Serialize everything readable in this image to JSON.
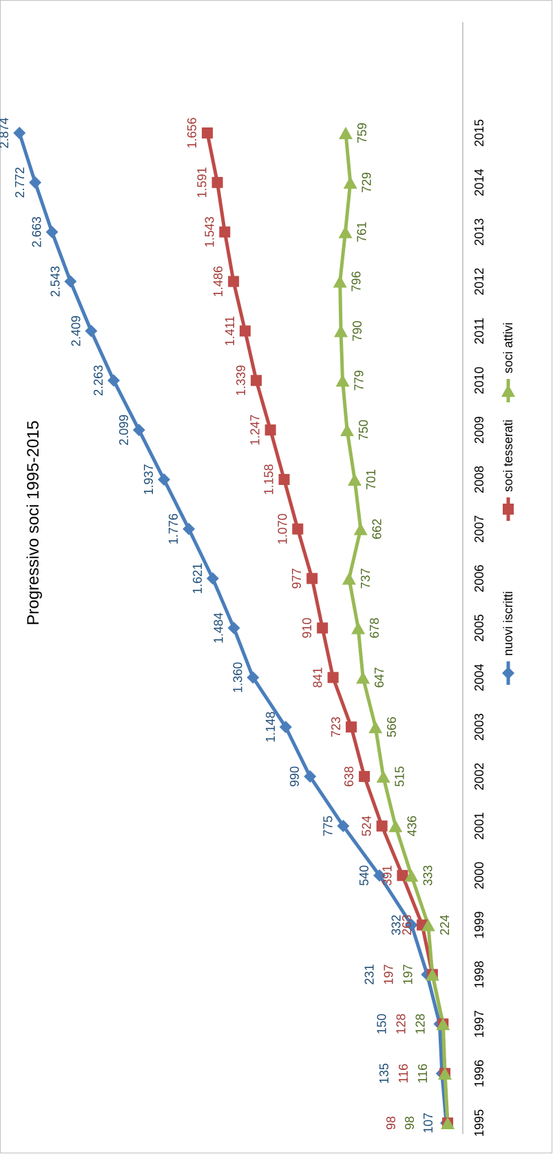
{
  "chart_data": {
    "type": "line",
    "title": "Progressivo soci 1995-2015",
    "xlabel": "",
    "ylabel": "",
    "categories": [
      "1995",
      "1996",
      "1997",
      "1998",
      "1999",
      "2000",
      "2001",
      "2002",
      "2003",
      "2004",
      "2005",
      "2006",
      "2007",
      "2008",
      "2009",
      "2010",
      "2011",
      "2012",
      "2013",
      "2014",
      "2015"
    ],
    "ylim": [
      0,
      3000
    ],
    "grid": false,
    "legend": "bottom",
    "series": [
      {
        "name": "nuovi iscritti",
        "color": "#4a7ebb",
        "marker": "diamond",
        "values": [
          107,
          135,
          150,
          231,
          332,
          540,
          775,
          990,
          1148,
          1360,
          1484,
          1621,
          1776,
          1937,
          2099,
          2263,
          2409,
          2543,
          2663,
          2772,
          2874
        ],
        "labels": [
          "107",
          "135",
          "150",
          "231",
          "332",
          "540",
          "775",
          "990",
          "1.148",
          "1.360",
          "1.484",
          "1.621",
          "1.776",
          "1.937",
          "2.099",
          "2.263",
          "2.409",
          "2.543",
          "2.663",
          "2.772",
          "2.874"
        ]
      },
      {
        "name": "soci tesserati",
        "color": "#be4b48",
        "marker": "square",
        "values": [
          98,
          116,
          128,
          197,
          263,
          391,
          524,
          638,
          723,
          841,
          910,
          977,
          1070,
          1158,
          1247,
          1339,
          1411,
          1486,
          1543,
          1591,
          1656
        ],
        "labels": [
          "98",
          "116",
          "128",
          "197",
          "263",
          "391",
          "524",
          "638",
          "723",
          "841",
          "910",
          "977",
          "1.070",
          "1.158",
          "1.247",
          "1.339",
          "1.411",
          "1.486",
          "1.543",
          "1.591",
          "1.656"
        ]
      },
      {
        "name": "soci attivi",
        "color": "#98b954",
        "marker": "triangle",
        "values": [
          98,
          116,
          128,
          197,
          224,
          333,
          436,
          515,
          566,
          647,
          678,
          737,
          662,
          701,
          750,
          779,
          790,
          796,
          761,
          729,
          759
        ],
        "labels": [
          "98",
          "116",
          "128",
          "197",
          "224",
          "333",
          "436",
          "515",
          "566",
          "647",
          "678",
          "737",
          "662",
          "701",
          "750",
          "779",
          "790",
          "796",
          "761",
          "729",
          "759"
        ]
      }
    ]
  }
}
